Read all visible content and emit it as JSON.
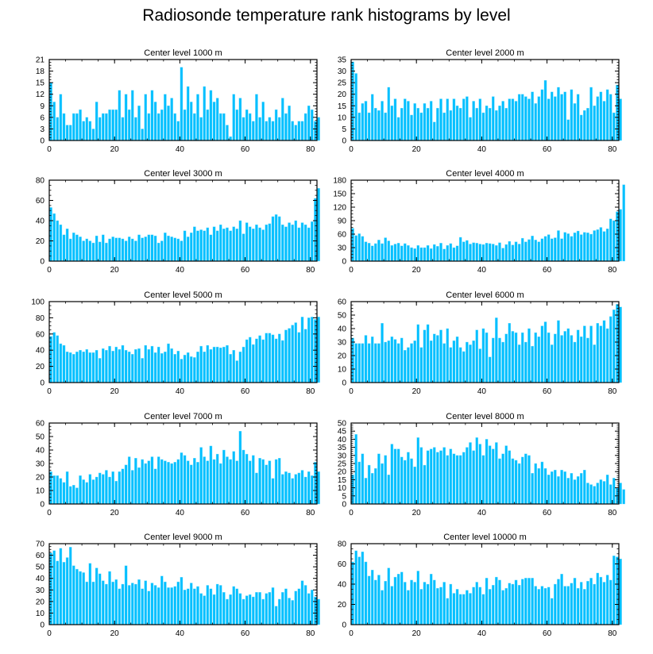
{
  "figure": {
    "title": "Radiosonde temperature rank histograms by level",
    "bar_color": "#00bfff",
    "bar_edge_color": "#7fdfff",
    "axis_color": "#000000"
  },
  "chart_data": [
    {
      "type": "bar",
      "title": "Center level 1000 m",
      "xlabel": "",
      "ylabel": "",
      "xlim": [
        0,
        82
      ],
      "xticks": [
        0,
        20,
        40,
        60,
        80
      ],
      "ylim": [
        0,
        21
      ],
      "yticks": [
        0,
        3,
        6,
        9,
        12,
        15,
        18,
        21
      ],
      "values": [
        15,
        10,
        6,
        12,
        7,
        4,
        4,
        7,
        7,
        8,
        5,
        6,
        5,
        3,
        10,
        6,
        7,
        7,
        8,
        8,
        8,
        13,
        6,
        12,
        8,
        13,
        6,
        9,
        3,
        12,
        7,
        13,
        10,
        7,
        8,
        12,
        9,
        11,
        7,
        5,
        19,
        8,
        14,
        10,
        7,
        12,
        6,
        14,
        8,
        13,
        10,
        11,
        7,
        7,
        4,
        1,
        12,
        8,
        11,
        6,
        8,
        7,
        5,
        12,
        6,
        10,
        5,
        6,
        5,
        8,
        6,
        11,
        7,
        9,
        5,
        4,
        5,
        5,
        7,
        9,
        8,
        5,
        6
      ]
    },
    {
      "type": "bar",
      "title": "Center level 2000 m",
      "xlabel": "",
      "ylabel": "",
      "xlim": [
        0,
        82
      ],
      "xticks": [
        0,
        20,
        40,
        60,
        80
      ],
      "ylim": [
        0,
        35
      ],
      "yticks": [
        0,
        5,
        10,
        15,
        20,
        25,
        30,
        35
      ],
      "values": [
        34,
        29,
        12,
        16,
        17,
        12,
        20,
        14,
        13,
        17,
        12,
        23,
        15,
        18,
        10,
        14,
        18,
        17,
        11,
        16,
        14,
        12,
        16,
        14,
        17,
        8,
        14,
        18,
        12,
        18,
        13,
        18,
        15,
        14,
        18,
        19,
        10,
        17,
        14,
        18,
        12,
        15,
        14,
        19,
        13,
        15,
        17,
        14,
        18,
        18,
        17,
        20,
        20,
        19,
        18,
        21,
        16,
        19,
        22,
        26,
        18,
        21,
        19,
        23,
        20,
        21,
        9,
        22,
        16,
        20,
        11,
        13,
        14,
        23,
        15,
        19,
        21,
        17,
        22,
        20,
        12,
        24,
        18
      ]
    },
    {
      "type": "bar",
      "title": "Center level 3000 m",
      "xlabel": "",
      "ylabel": "",
      "xlim": [
        0,
        82
      ],
      "xticks": [
        0,
        20,
        40,
        60,
        80
      ],
      "ylim": [
        0,
        80
      ],
      "yticks": [
        0,
        20,
        40,
        60,
        80
      ],
      "values": [
        53,
        47,
        40,
        36,
        26,
        32,
        22,
        28,
        26,
        24,
        20,
        22,
        20,
        18,
        25,
        19,
        26,
        18,
        22,
        24,
        23,
        23,
        22,
        20,
        24,
        22,
        20,
        26,
        23,
        24,
        26,
        26,
        25,
        18,
        20,
        28,
        25,
        24,
        23,
        22,
        20,
        30,
        24,
        28,
        34,
        30,
        31,
        30,
        33,
        26,
        34,
        30,
        36,
        32,
        33,
        30,
        34,
        32,
        40,
        27,
        38,
        34,
        32,
        36,
        33,
        31,
        36,
        37,
        44,
        46,
        44,
        36,
        34,
        38,
        36,
        40,
        33,
        38,
        36,
        33,
        39,
        62,
        72
      ]
    },
    {
      "type": "bar",
      "title": "Center level 4000 m",
      "xlabel": "",
      "ylabel": "",
      "xlim": [
        0,
        82
      ],
      "xticks": [
        0,
        20,
        40,
        60,
        80
      ],
      "ylim": [
        0,
        180
      ],
      "yticks": [
        0,
        30,
        60,
        90,
        120,
        150,
        180
      ],
      "values": [
        73,
        57,
        61,
        55,
        43,
        40,
        34,
        39,
        47,
        39,
        52,
        45,
        35,
        38,
        40,
        34,
        39,
        35,
        30,
        28,
        35,
        30,
        30,
        35,
        28,
        37,
        33,
        40,
        27,
        35,
        39,
        30,
        34,
        53,
        43,
        46,
        38,
        41,
        40,
        38,
        37,
        40,
        39,
        38,
        35,
        41,
        29,
        37,
        44,
        36,
        43,
        38,
        51,
        43,
        48,
        56,
        47,
        43,
        50,
        55,
        59,
        50,
        52,
        68,
        50,
        64,
        61,
        55,
        63,
        67,
        59,
        64,
        63,
        60,
        68,
        70,
        75,
        66,
        72,
        94,
        90,
        110,
        115,
        170
      ]
    },
    {
      "type": "bar",
      "title": "Center level 5000 m",
      "xlabel": "",
      "ylabel": "",
      "xlim": [
        0,
        82
      ],
      "xticks": [
        0,
        20,
        40,
        60,
        80
      ],
      "ylim": [
        0,
        100
      ],
      "yticks": [
        0,
        20,
        40,
        60,
        80,
        100
      ],
      "values": [
        57,
        62,
        58,
        48,
        46,
        38,
        37,
        35,
        38,
        40,
        38,
        41,
        37,
        37,
        40,
        30,
        42,
        40,
        45,
        39,
        44,
        41,
        46,
        40,
        38,
        35,
        41,
        42,
        30,
        46,
        41,
        45,
        37,
        44,
        36,
        38,
        48,
        42,
        35,
        39,
        29,
        34,
        37,
        32,
        31,
        38,
        45,
        38,
        46,
        41,
        44,
        44,
        43,
        44,
        46,
        35,
        40,
        27,
        38,
        44,
        53,
        56,
        47,
        54,
        58,
        53,
        61,
        61,
        59,
        54,
        60,
        52,
        65,
        67,
        71,
        74,
        62,
        81,
        66,
        80,
        81,
        78,
        81
      ]
    },
    {
      "type": "bar",
      "title": "Center level 6000 m",
      "xlabel": "",
      "ylabel": "",
      "xlim": [
        0,
        82
      ],
      "xticks": [
        0,
        20,
        40,
        60,
        80
      ],
      "ylim": [
        0,
        60
      ],
      "yticks": [
        0,
        10,
        20,
        30,
        40,
        50,
        60
      ],
      "values": [
        33,
        29,
        29,
        29,
        35,
        29,
        34,
        29,
        29,
        44,
        30,
        31,
        34,
        32,
        29,
        33,
        24,
        26,
        29,
        31,
        43,
        26,
        39,
        43,
        31,
        36,
        35,
        39,
        29,
        40,
        26,
        31,
        34,
        26,
        23,
        30,
        28,
        31,
        39,
        25,
        40,
        37,
        19,
        33,
        48,
        33,
        30,
        36,
        44,
        38,
        37,
        28,
        37,
        30,
        40,
        27,
        37,
        34,
        42,
        45,
        37,
        28,
        36,
        46,
        35,
        38,
        40,
        35,
        30,
        39,
        34,
        42,
        33,
        42,
        28,
        44,
        42,
        46,
        40,
        49,
        54,
        58,
        56
      ]
    },
    {
      "type": "bar",
      "title": "Center level 7000 m",
      "xlabel": "",
      "ylabel": "",
      "xlim": [
        0,
        82
      ],
      "xticks": [
        0,
        20,
        40,
        60,
        80
      ],
      "ylim": [
        0,
        60
      ],
      "yticks": [
        0,
        10,
        20,
        30,
        40,
        50,
        60
      ],
      "values": [
        24,
        21,
        21,
        19,
        16,
        24,
        13,
        14,
        12,
        21,
        18,
        16,
        22,
        18,
        20,
        23,
        22,
        25,
        20,
        24,
        17,
        24,
        26,
        29,
        35,
        25,
        34,
        27,
        33,
        30,
        32,
        35,
        26,
        35,
        33,
        32,
        31,
        30,
        31,
        33,
        38,
        36,
        32,
        29,
        34,
        31,
        42,
        35,
        32,
        43,
        33,
        37,
        30,
        40,
        35,
        33,
        39,
        32,
        54,
        40,
        37,
        32,
        36,
        23,
        34,
        33,
        29,
        32,
        19,
        33,
        34,
        22,
        24,
        23,
        19,
        22,
        23,
        25,
        20,
        24,
        21,
        31,
        24
      ]
    },
    {
      "type": "bar",
      "title": "Center level 8000 m",
      "xlabel": "",
      "ylabel": "",
      "xlim": [
        0,
        82
      ],
      "xticks": [
        0,
        20,
        40,
        60,
        80
      ],
      "ylim": [
        0,
        50
      ],
      "yticks": [
        0,
        5,
        10,
        15,
        20,
        25,
        30,
        35,
        40,
        45,
        50
      ],
      "values": [
        18,
        43,
        26,
        31,
        16,
        24,
        19,
        22,
        31,
        25,
        30,
        18,
        37,
        34,
        34,
        29,
        27,
        32,
        28,
        23,
        41,
        35,
        24,
        33,
        34,
        35,
        32,
        33,
        35,
        30,
        34,
        31,
        30,
        30,
        32,
        35,
        38,
        33,
        41,
        37,
        30,
        40,
        36,
        34,
        38,
        28,
        31,
        36,
        33,
        28,
        27,
        25,
        29,
        31,
        30,
        19,
        25,
        22,
        26,
        22,
        18,
        20,
        21,
        17,
        21,
        20,
        16,
        19,
        15,
        17,
        19,
        21,
        13,
        12,
        11,
        13,
        15,
        14,
        18,
        12,
        16,
        10,
        13,
        9
      ]
    },
    {
      "type": "bar",
      "title": "Center level 9000 m",
      "xlabel": "",
      "ylabel": "",
      "xlim": [
        0,
        82
      ],
      "xticks": [
        0,
        20,
        40,
        60,
        80
      ],
      "ylim": [
        0,
        70
      ],
      "yticks": [
        0,
        10,
        20,
        30,
        40,
        50,
        60,
        70
      ],
      "values": [
        62,
        64,
        55,
        66,
        54,
        58,
        67,
        51,
        48,
        46,
        45,
        37,
        53,
        37,
        49,
        44,
        38,
        35,
        46,
        37,
        39,
        31,
        35,
        51,
        34,
        36,
        35,
        39,
        31,
        38,
        29,
        36,
        34,
        32,
        42,
        37,
        32,
        32,
        33,
        37,
        41,
        30,
        31,
        36,
        31,
        33,
        27,
        25,
        34,
        31,
        26,
        35,
        34,
        28,
        22,
        26,
        33,
        31,
        27,
        22,
        25,
        26,
        24,
        28,
        28,
        22,
        27,
        28,
        32,
        16,
        22,
        28,
        31,
        23,
        21,
        29,
        31,
        38,
        34,
        27,
        30,
        24,
        22
      ]
    },
    {
      "type": "bar",
      "title": "Center level 10000 m",
      "xlabel": "",
      "ylabel": "",
      "xlim": [
        0,
        82
      ],
      "xticks": [
        0,
        20,
        40,
        60,
        80
      ],
      "ylim": [
        0,
        80
      ],
      "yticks": [
        0,
        20,
        40,
        60,
        80
      ],
      "values": [
        62,
        73,
        67,
        72,
        62,
        48,
        54,
        44,
        49,
        34,
        43,
        56,
        38,
        47,
        50,
        52,
        42,
        34,
        44,
        42,
        53,
        35,
        42,
        40,
        50,
        44,
        36,
        37,
        42,
        26,
        40,
        31,
        35,
        30,
        30,
        34,
        31,
        37,
        42,
        37,
        30,
        46,
        35,
        39,
        47,
        44,
        34,
        36,
        41,
        40,
        44,
        39,
        45,
        46,
        46,
        46,
        38,
        35,
        38,
        36,
        37,
        26,
        40,
        45,
        50,
        38,
        38,
        41,
        46,
        36,
        42,
        35,
        43,
        46,
        40,
        51,
        47,
        42,
        49,
        44,
        68,
        67,
        65
      ]
    }
  ]
}
